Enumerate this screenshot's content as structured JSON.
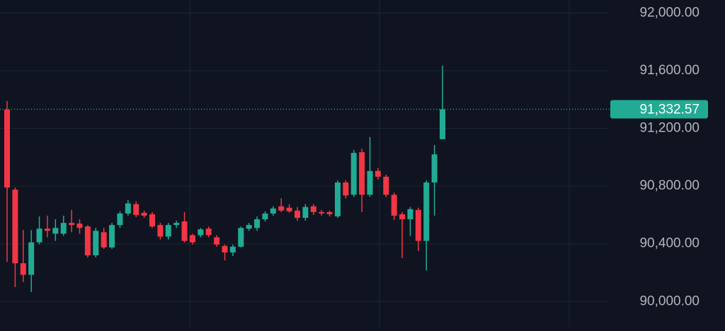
{
  "chart_data": {
    "type": "candlestick",
    "open": [
      91330,
      90775,
      90265,
      90185,
      90410,
      90505,
      90470,
      90470,
      90545,
      90540,
      90520,
      90320,
      90480,
      90375,
      90530,
      90610,
      90675,
      90615,
      90605,
      90530,
      90450,
      90530,
      90555,
      90460,
      90460,
      90505,
      90445,
      90385,
      90340,
      90380,
      90505,
      90510,
      90570,
      90610,
      90660,
      90650,
      90630,
      90580,
      90660,
      90620,
      90620,
      90590,
      90825,
      90740,
      91035,
      90740,
      90905,
      90865,
      90740,
      90605,
      90570,
      90635,
      90420,
      90825,
      91125
    ],
    "high": [
      91390,
      90790,
      90495,
      90495,
      90590,
      90595,
      90570,
      90595,
      90635,
      90570,
      90530,
      90510,
      90510,
      90545,
      90625,
      90705,
      90695,
      90630,
      90620,
      90545,
      90545,
      90560,
      90620,
      90470,
      90510,
      90520,
      90460,
      90395,
      90395,
      90520,
      90545,
      90590,
      90625,
      90660,
      90715,
      90675,
      90655,
      90675,
      90675,
      90635,
      90630,
      90840,
      90840,
      91050,
      91060,
      91140,
      90925,
      90880,
      90755,
      90620,
      90655,
      90650,
      90840,
      91085,
      91635
    ],
    "low": [
      90275,
      90100,
      90135,
      90065,
      90395,
      90445,
      90420,
      90455,
      90480,
      90470,
      90305,
      90305,
      90365,
      90365,
      90510,
      90595,
      90585,
      90580,
      90510,
      90430,
      90430,
      90510,
      90410,
      90395,
      90445,
      90445,
      90380,
      90285,
      90315,
      90375,
      90490,
      90490,
      90555,
      90595,
      90620,
      90615,
      90560,
      90560,
      90600,
      90595,
      90590,
      90580,
      90715,
      90725,
      90620,
      90725,
      90845,
      90725,
      90565,
      90300,
      90455,
      90350,
      90215,
      90595,
      91125
    ],
    "close": [
      90790,
      90265,
      90185,
      90410,
      90505,
      90490,
      90510,
      90545,
      90530,
      90510,
      90320,
      90490,
      90375,
      90530,
      90610,
      90680,
      90600,
      90595,
      90520,
      90450,
      90530,
      90545,
      90420,
      90410,
      90500,
      90460,
      90395,
      90340,
      90380,
      90510,
      90530,
      90570,
      90610,
      90645,
      90630,
      90625,
      90580,
      90655,
      90620,
      90610,
      90605,
      90825,
      90735,
      91030,
      90740,
      90905,
      90865,
      90740,
      90595,
      90570,
      90640,
      90420,
      90825,
      91020,
      91332.57
    ],
    "up_color": "#22ab94",
    "down_color": "#f23645",
    "ylim": [
      89820,
      92090
    ],
    "yticks": [
      {
        "value": 90000,
        "label": "90,000.00"
      },
      {
        "value": 90400,
        "label": "90,400.00"
      },
      {
        "value": 90800,
        "label": "90,800.00"
      },
      {
        "value": 91200,
        "label": "91,200.00"
      },
      {
        "value": 91600,
        "label": "91,600.00"
      },
      {
        "value": 92000,
        "label": "92,000.00"
      }
    ],
    "last_price": {
      "value": 91332.57,
      "label": "91,332.57"
    },
    "grid": true
  }
}
